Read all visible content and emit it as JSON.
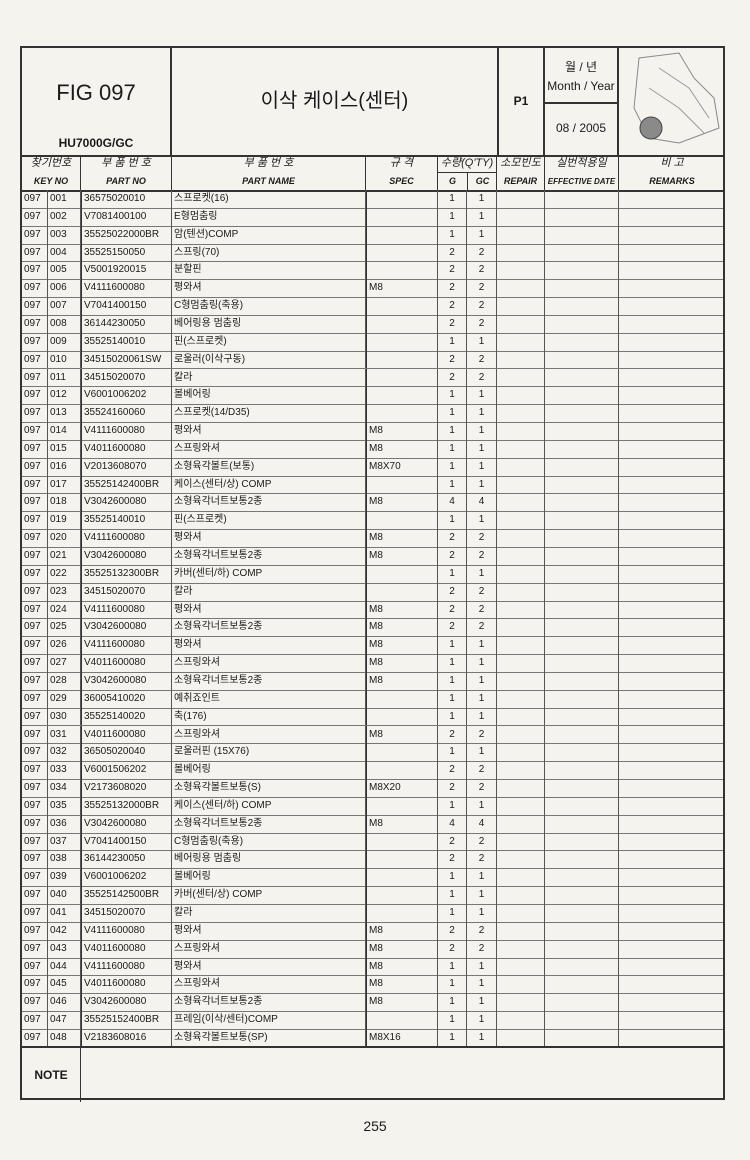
{
  "header": {
    "fig": "FIG 097",
    "model": "HU7000G/GC",
    "title": "이삭 케이스(센터)",
    "page_code": "P1",
    "month_year_kr": "월 / 년",
    "month_year_en": "Month / Year",
    "date": "08 / 2005"
  },
  "columns": {
    "key_kr": "찾기번호",
    "key_en": "KEY NO",
    "partno_kr": "부 품 번 호",
    "partno_en": "PART NO",
    "name_kr": "부 품 번 호",
    "name_en": "PART NAME",
    "spec_kr": "규  격",
    "spec_en": "SPEC",
    "qty_kr": "수량(Q'TY)",
    "qty_g": "G",
    "qty_gc": "GC",
    "repair_kr": "소모빈도",
    "repair_en": "REPAIR",
    "eff_kr": "실번적용일",
    "eff_en": "EFFECTIVE DATE",
    "remarks_kr": "비     고",
    "remarks_en": "REMARKS"
  },
  "rows": [
    [
      "097",
      "001",
      "36575020010",
      "스프로켓(16)",
      "",
      "1",
      "1"
    ],
    [
      "097",
      "002",
      "V7081400100",
      "E형멈춤링",
      "",
      "1",
      "1"
    ],
    [
      "097",
      "003",
      "35525022000BR",
      "암(텐션)COMP",
      "",
      "1",
      "1"
    ],
    [
      "097",
      "004",
      "35525150050",
      "스프링(70)",
      "",
      "2",
      "2"
    ],
    [
      "097",
      "005",
      "V5001920015",
      "분할핀",
      "",
      "2",
      "2"
    ],
    [
      "097",
      "006",
      "V4111600080",
      "평와셔",
      "M8",
      "2",
      "2"
    ],
    [
      "097",
      "007",
      "V7041400150",
      "C형멈춤링(축용)",
      "",
      "2",
      "2"
    ],
    [
      "097",
      "008",
      "36144230050",
      "베어링용 멈춤링",
      "",
      "2",
      "2"
    ],
    [
      "097",
      "009",
      "35525140010",
      "핀(스프로켓)",
      "",
      "1",
      "1"
    ],
    [
      "097",
      "010",
      "34515020061SW",
      "로울러(이삭구동)",
      "",
      "2",
      "2"
    ],
    [
      "097",
      "011",
      "34515020070",
      "칼라",
      "",
      "2",
      "2"
    ],
    [
      "097",
      "012",
      "V6001006202",
      "볼베어링",
      "",
      "1",
      "1"
    ],
    [
      "097",
      "013",
      "35524160060",
      "스프로켓(14/D35)",
      "",
      "1",
      "1"
    ],
    [
      "097",
      "014",
      "V4111600080",
      "평와셔",
      "M8",
      "1",
      "1"
    ],
    [
      "097",
      "015",
      "V4011600080",
      "스프링와셔",
      "M8",
      "1",
      "1"
    ],
    [
      "097",
      "016",
      "V2013608070",
      "소형육각볼트(보통)",
      "M8X70",
      "1",
      "1"
    ],
    [
      "097",
      "017",
      "35525142400BR",
      "케이스(센터/상) COMP",
      "",
      "1",
      "1"
    ],
    [
      "097",
      "018",
      "V3042600080",
      "소형육각너트보통2종",
      "M8",
      "4",
      "4"
    ],
    [
      "097",
      "019",
      "35525140010",
      "핀(스프로켓)",
      "",
      "1",
      "1"
    ],
    [
      "097",
      "020",
      "V4111600080",
      "평와셔",
      "M8",
      "2",
      "2"
    ],
    [
      "097",
      "021",
      "V3042600080",
      "소형육각너트보통2종",
      "M8",
      "2",
      "2"
    ],
    [
      "097",
      "022",
      "35525132300BR",
      "카버(센터/하) COMP",
      "",
      "1",
      "1"
    ],
    [
      "097",
      "023",
      "34515020070",
      "칼라",
      "",
      "2",
      "2"
    ],
    [
      "097",
      "024",
      "V4111600080",
      "평와셔",
      "M8",
      "2",
      "2"
    ],
    [
      "097",
      "025",
      "V3042600080",
      "소형육각너트보통2종",
      "M8",
      "2",
      "2"
    ],
    [
      "097",
      "026",
      "V4111600080",
      "평와셔",
      "M8",
      "1",
      "1"
    ],
    [
      "097",
      "027",
      "V4011600080",
      "스프링와셔",
      "M8",
      "1",
      "1"
    ],
    [
      "097",
      "028",
      "V3042600080",
      "소형육각너트보통2종",
      "M8",
      "1",
      "1"
    ],
    [
      "097",
      "029",
      "36005410020",
      "예취죠인트",
      "",
      "1",
      "1"
    ],
    [
      "097",
      "030",
      "35525140020",
      "축(176)",
      "",
      "1",
      "1"
    ],
    [
      "097",
      "031",
      "V4011600080",
      "스프링와셔",
      "M8",
      "2",
      "2"
    ],
    [
      "097",
      "032",
      "36505020040",
      "로울러핀 (15X76)",
      "",
      "1",
      "1"
    ],
    [
      "097",
      "033",
      "V6001506202",
      "볼베어링",
      "",
      "2",
      "2"
    ],
    [
      "097",
      "034",
      "V2173608020",
      "소형육각볼트보통(S)",
      "M8X20",
      "2",
      "2"
    ],
    [
      "097",
      "035",
      "35525132000BR",
      "케이스(센터/하) COMP",
      "",
      "1",
      "1"
    ],
    [
      "097",
      "036",
      "V3042600080",
      "소형육각너트보통2종",
      "M8",
      "4",
      "4"
    ],
    [
      "097",
      "037",
      "V7041400150",
      "C형멈춤링(축용)",
      "",
      "2",
      "2"
    ],
    [
      "097",
      "038",
      "36144230050",
      "베어링용 멈춤링",
      "",
      "2",
      "2"
    ],
    [
      "097",
      "039",
      "V6001006202",
      "볼베어링",
      "",
      "1",
      "1"
    ],
    [
      "097",
      "040",
      "35525142500BR",
      "카버(센터/상) COMP",
      "",
      "1",
      "1"
    ],
    [
      "097",
      "041",
      "34515020070",
      "칼라",
      "",
      "1",
      "1"
    ],
    [
      "097",
      "042",
      "V4111600080",
      "평와셔",
      "M8",
      "2",
      "2"
    ],
    [
      "097",
      "043",
      "V4011600080",
      "스프링와셔",
      "M8",
      "2",
      "2"
    ],
    [
      "097",
      "044",
      "V4111600080",
      "평와셔",
      "M8",
      "1",
      "1"
    ],
    [
      "097",
      "045",
      "V4011600080",
      "스프링와셔",
      "M8",
      "1",
      "1"
    ],
    [
      "097",
      "046",
      "V3042600080",
      "소형육각너트보통2종",
      "M8",
      "1",
      "1"
    ],
    [
      "097",
      "047",
      "35525152400BR",
      "프레임(이삭/센터)COMP",
      "",
      "1",
      "1"
    ],
    [
      "097",
      "048",
      "V2183608016",
      "소형육각볼트보통(SP)",
      "M8X16",
      "1",
      "1"
    ]
  ],
  "note_label": "NOTE",
  "page_number": "255"
}
